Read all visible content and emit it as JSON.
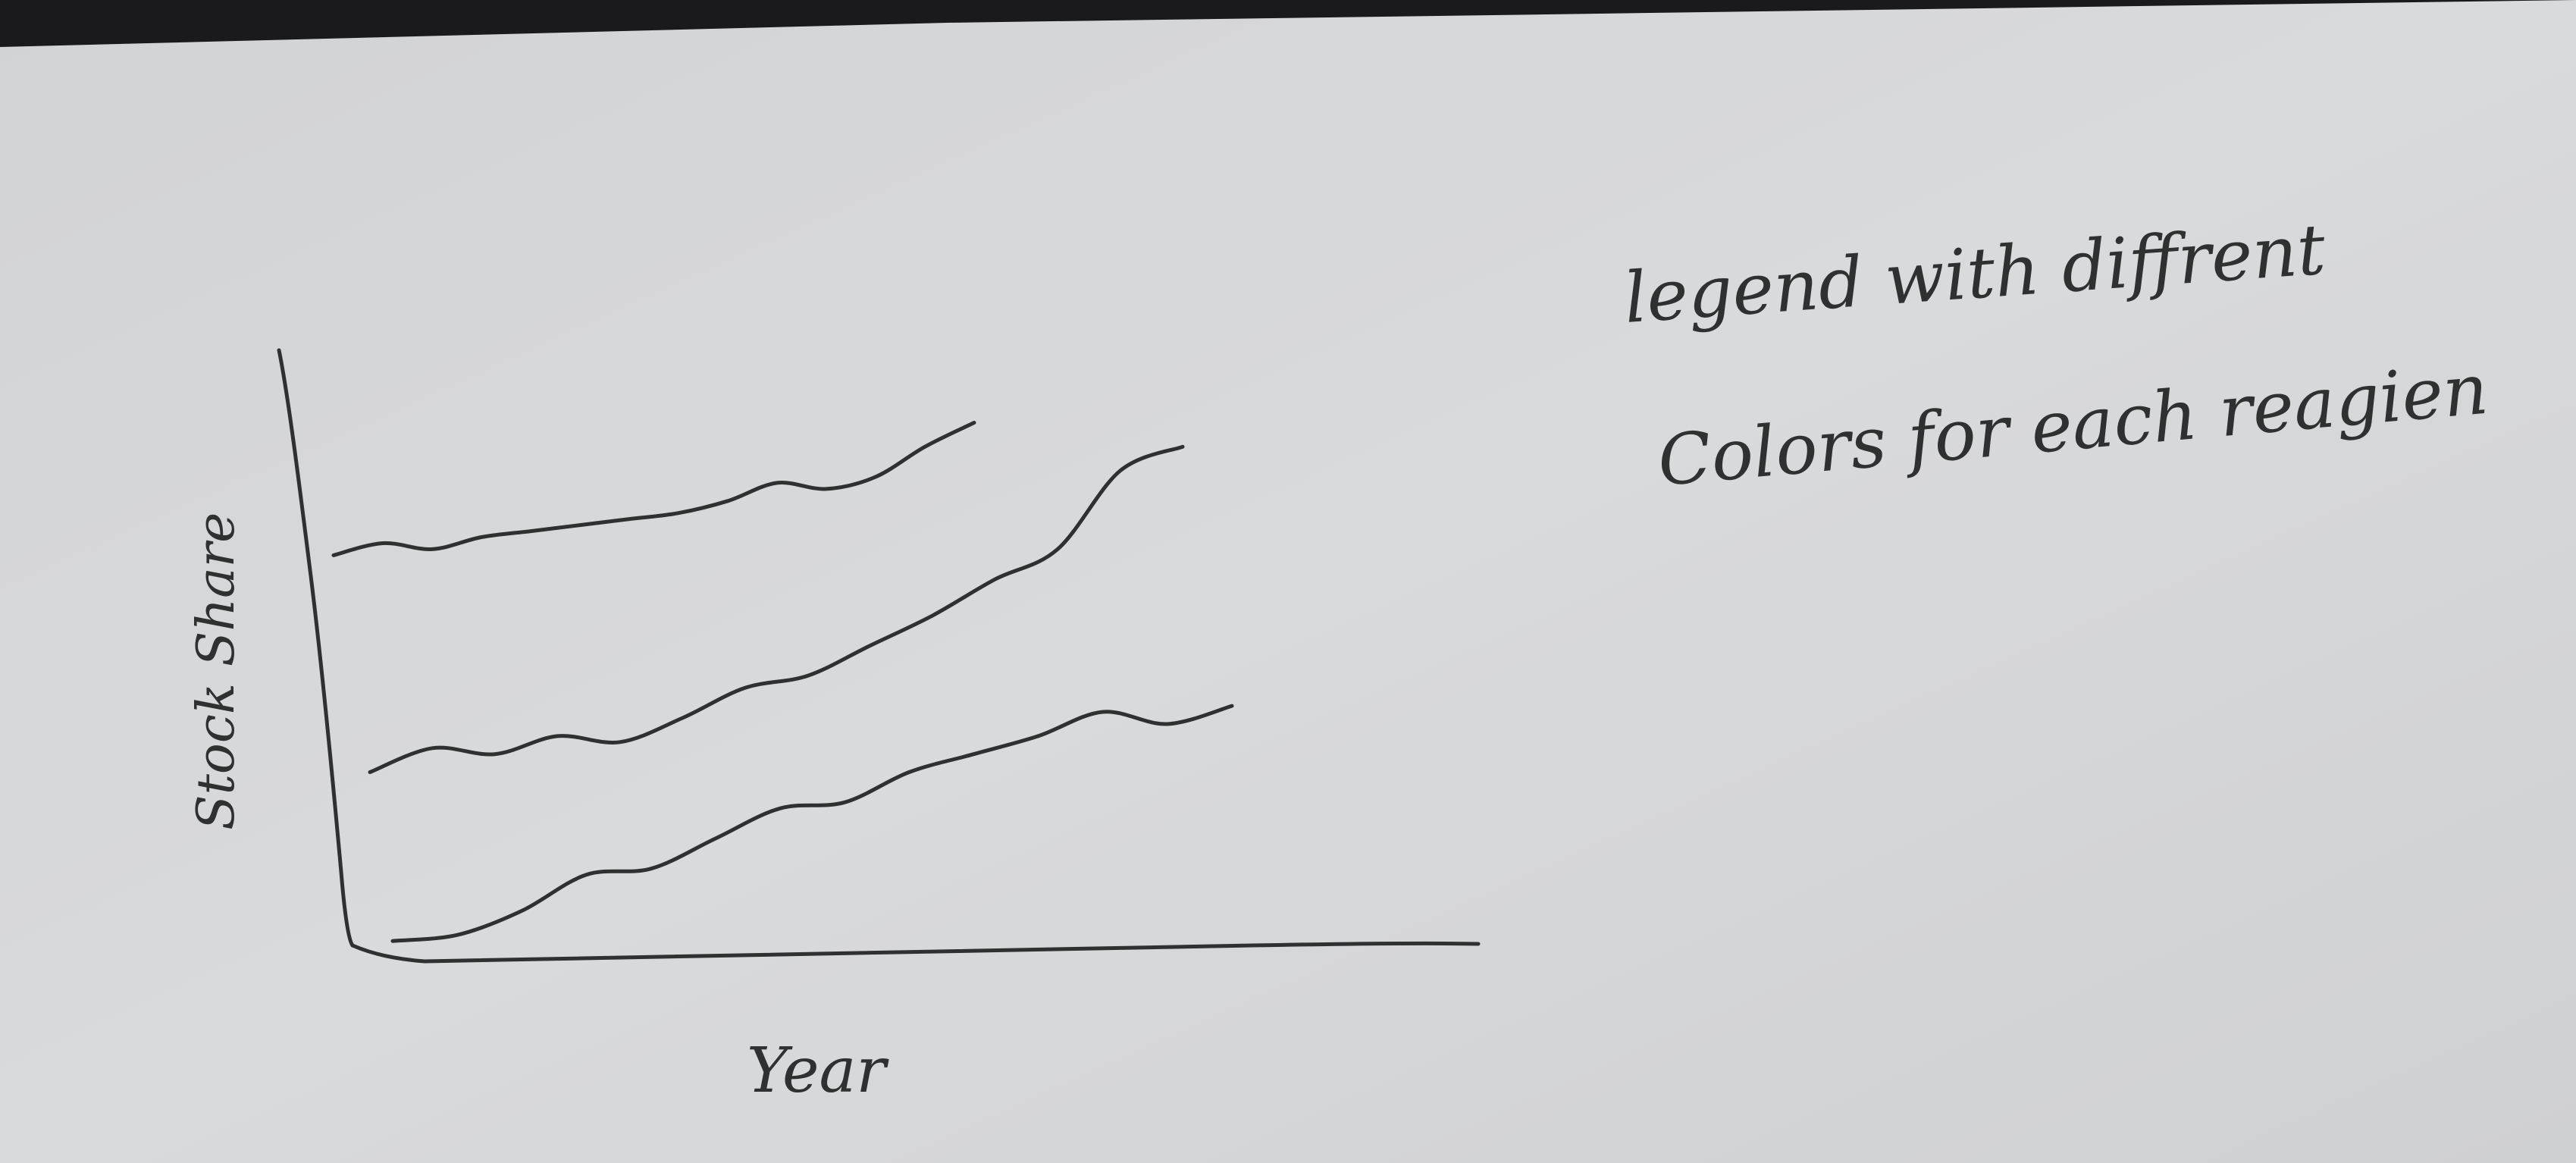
{
  "sketch": {
    "medium": "hand-drawn pen sketch on paper",
    "paper_color": "#d9dadc",
    "ink_color": "#2f3030",
    "background_color": "#1a1a1c"
  },
  "chart_data": {
    "type": "line",
    "xlabel": "Year",
    "ylabel": "Stock Share",
    "grid": false,
    "series": [
      {
        "values": [
          0.67,
          0.69,
          0.68,
          0.7,
          0.71,
          0.72,
          0.73,
          0.74,
          0.76,
          0.79,
          0.78,
          0.8,
          0.85,
          0.89
        ]
      },
      {
        "values": [
          0.31,
          0.35,
          0.34,
          0.37,
          0.36,
          0.4,
          0.45,
          0.47,
          0.52,
          0.57,
          0.63,
          0.68,
          0.81,
          0.85
        ]
      },
      {
        "values": [
          0.03,
          0.04,
          0.08,
          0.14,
          0.15,
          0.2,
          0.25,
          0.26,
          0.31,
          0.34,
          0.37,
          0.41,
          0.39,
          0.42
        ]
      }
    ]
  },
  "annotation": {
    "line1": "legend with diffrent",
    "line2": "Colors for each reagien"
  }
}
